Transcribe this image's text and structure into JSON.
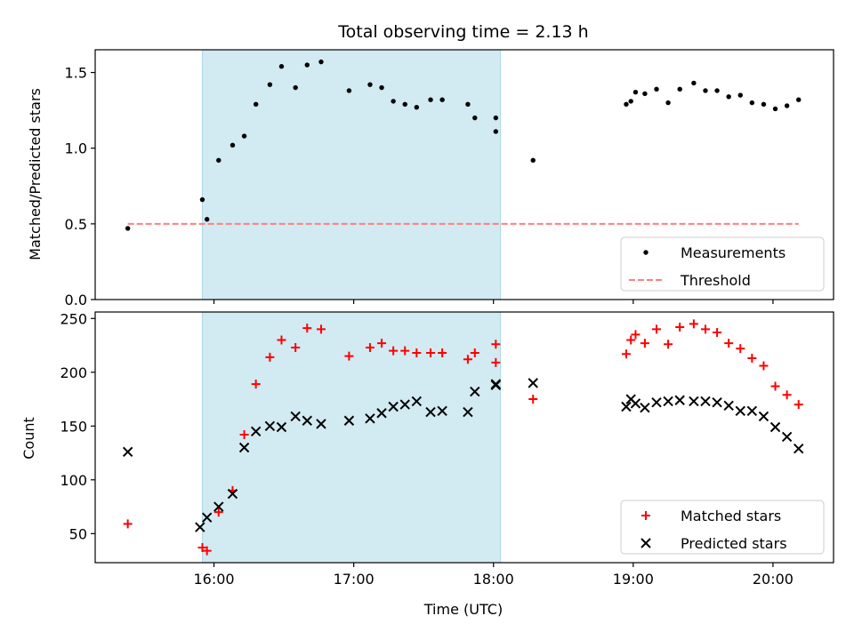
{
  "chart_data": [
    {
      "type": "scatter",
      "title": "Total observing time = 2.13 h",
      "xlabel": "",
      "ylabel": "Matched/Predicted stars",
      "xlim": [
        "15:09",
        "20:26"
      ],
      "ylim": [
        0,
        1.65
      ],
      "x_ticks": [
        "16:00",
        "17:00",
        "18:00",
        "19:00",
        "20:00"
      ],
      "y_ticks": [
        "0.0",
        "0.5",
        "1.0",
        "1.5"
      ],
      "shaded_span": [
        "15:55",
        "18:03"
      ],
      "shade_color": "#add8e6",
      "legend": "lower right",
      "series": [
        {
          "name": "Measurements",
          "marker": "dot",
          "color": "#000000",
          "x": [
            "15:23",
            "15:55",
            "15:57",
            "16:02",
            "16:08",
            "16:13",
            "16:18",
            "16:24",
            "16:29",
            "16:35",
            "16:40",
            "16:46",
            "16:58",
            "17:07",
            "17:12",
            "17:17",
            "17:22",
            "17:27",
            "17:33",
            "17:38",
            "17:49",
            "17:52",
            "18:01",
            "18:01",
            "18:17",
            "18:57",
            "18:59",
            "19:01",
            "19:05",
            "19:10",
            "19:15",
            "19:20",
            "19:26",
            "19:31",
            "19:36",
            "19:41",
            "19:46",
            "19:51",
            "19:56",
            "20:01",
            "20:06",
            "20:11"
          ],
          "y": [
            0.47,
            0.66,
            0.53,
            0.92,
            1.02,
            1.08,
            1.29,
            1.42,
            1.54,
            1.4,
            1.55,
            1.57,
            1.38,
            1.42,
            1.4,
            1.31,
            1.29,
            1.27,
            1.32,
            1.32,
            1.29,
            1.2,
            1.2,
            1.11,
            0.92,
            1.29,
            1.31,
            1.37,
            1.36,
            1.39,
            1.3,
            1.39,
            1.43,
            1.38,
            1.38,
            1.34,
            1.35,
            1.3,
            1.29,
            1.26,
            1.28,
            1.32
          ]
        },
        {
          "name": "Threshold",
          "style": "dashed",
          "color": "#ff7f7f",
          "x": [
            "15:23",
            "20:11"
          ],
          "y": [
            0.5,
            0.5
          ]
        }
      ]
    },
    {
      "type": "scatter",
      "title": "",
      "xlabel": "Time (UTC)",
      "ylabel": "Count",
      "xlim": [
        "15:09",
        "20:26"
      ],
      "ylim": [
        23,
        256
      ],
      "x_ticks": [
        "16:00",
        "17:00",
        "18:00",
        "19:00",
        "20:00"
      ],
      "y_ticks": [
        "50",
        "100",
        "150",
        "200",
        "250"
      ],
      "shaded_span": [
        "15:55",
        "18:03"
      ],
      "shade_color": "#add8e6",
      "legend": "lower right",
      "series": [
        {
          "name": "Matched stars",
          "marker": "plus",
          "color": "#ff0000",
          "x": [
            "15:23",
            "15:55",
            "15:57",
            "16:02",
            "16:08",
            "16:13",
            "16:18",
            "16:24",
            "16:29",
            "16:35",
            "16:40",
            "16:46",
            "16:58",
            "17:07",
            "17:12",
            "17:17",
            "17:22",
            "17:27",
            "17:33",
            "17:38",
            "17:49",
            "17:52",
            "18:01",
            "18:01",
            "18:17",
            "18:57",
            "18:59",
            "19:01",
            "19:05",
            "19:10",
            "19:15",
            "19:20",
            "19:26",
            "19:31",
            "19:36",
            "19:41",
            "19:46",
            "19:51",
            "19:56",
            "20:01",
            "20:06",
            "20:11"
          ],
          "y": [
            59,
            37,
            34,
            70,
            90,
            142,
            189,
            214,
            230,
            223,
            241,
            240,
            215,
            223,
            227,
            220,
            220,
            218,
            218,
            218,
            212,
            218,
            226,
            209,
            175,
            217,
            230,
            235,
            227,
            240,
            226,
            242,
            245,
            240,
            237,
            227,
            222,
            213,
            206,
            187,
            179,
            170
          ]
        },
        {
          "name": "Predicted stars",
          "marker": "x",
          "color": "#000000",
          "x": [
            "15:23",
            "15:54",
            "15:57",
            "16:02",
            "16:08",
            "16:13",
            "16:18",
            "16:24",
            "16:29",
            "16:35",
            "16:40",
            "16:46",
            "16:58",
            "17:07",
            "17:12",
            "17:17",
            "17:22",
            "17:27",
            "17:33",
            "17:38",
            "17:49",
            "17:52",
            "18:01",
            "18:01",
            "18:17",
            "18:57",
            "18:59",
            "19:01",
            "19:05",
            "19:10",
            "19:15",
            "19:20",
            "19:26",
            "19:31",
            "19:36",
            "19:41",
            "19:46",
            "19:51",
            "19:56",
            "20:01",
            "20:06",
            "20:11"
          ],
          "y": [
            126,
            56,
            65,
            75,
            87,
            130,
            145,
            150,
            149,
            159,
            155,
            152,
            155,
            157,
            162,
            168,
            170,
            173,
            163,
            164,
            163,
            182,
            188,
            189,
            190,
            168,
            175,
            171,
            167,
            172,
            173,
            174,
            173,
            173,
            172,
            169,
            164,
            164,
            159,
            149,
            140,
            129
          ]
        }
      ]
    }
  ]
}
